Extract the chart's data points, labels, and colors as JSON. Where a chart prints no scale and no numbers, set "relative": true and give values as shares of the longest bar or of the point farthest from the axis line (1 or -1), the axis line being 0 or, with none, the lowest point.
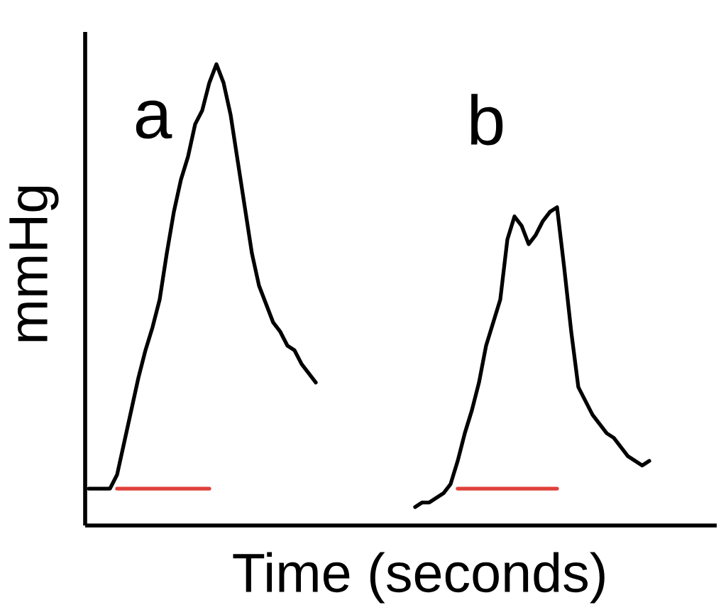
{
  "chart_data": {
    "type": "line",
    "relative": true,
    "xlabel": "Time (seconds)",
    "ylabel": "mmHg",
    "categories": [
      null,
      null,
      null,
      null,
      null,
      null,
      null,
      null,
      null,
      null,
      null,
      null,
      null,
      null,
      null,
      null,
      null,
      null,
      null,
      null,
      null,
      null,
      null,
      null,
      null,
      null,
      null,
      null,
      null,
      null,
      null,
      null,
      null,
      null,
      null,
      null,
      null,
      null,
      null,
      null,
      null,
      null,
      null,
      null,
      null,
      null,
      null,
      null,
      null,
      null,
      null,
      null,
      null,
      null,
      null,
      null,
      null,
      null,
      null,
      null,
      null,
      null,
      null,
      null,
      null,
      null,
      null,
      null,
      null,
      null,
      null,
      null,
      null,
      null,
      null,
      null,
      null,
      null,
      null,
      null,
      null,
      null,
      null,
      null,
      null,
      null,
      null,
      null,
      null
    ],
    "series": [
      {
        "name": "a",
        "color": "#000000",
        "values": [
          0.08,
          0.08,
          0.08,
          0.08,
          0.11,
          0.18,
          0.25,
          0.32,
          0.38,
          0.43,
          0.49,
          0.59,
          0.68,
          0.75,
          0.8,
          0.87,
          0.9,
          0.96,
          1,
          0.96,
          0.89,
          0.79,
          0.69,
          0.59,
          0.52,
          0.48,
          0.44,
          0.42,
          0.39,
          0.38,
          0.35,
          0.33,
          0.31,
          null,
          null,
          null,
          null,
          null,
          null,
          null,
          null,
          null,
          null,
          null,
          null,
          null,
          null,
          null,
          null,
          null,
          null,
          null,
          null,
          null,
          null,
          null,
          null,
          null,
          null,
          null,
          null,
          null,
          null,
          null,
          null,
          null,
          null,
          null,
          null,
          null,
          null,
          null,
          null,
          null,
          null,
          null,
          null,
          null,
          null,
          null,
          null,
          null,
          null,
          null,
          null,
          null,
          null,
          null,
          null
        ]
      },
      {
        "name": "b",
        "color": "#000000",
        "values": [
          null,
          null,
          null,
          null,
          null,
          null,
          null,
          null,
          null,
          null,
          null,
          null,
          null,
          null,
          null,
          null,
          null,
          null,
          null,
          null,
          null,
          null,
          null,
          null,
          null,
          null,
          null,
          null,
          null,
          null,
          null,
          null,
          null,
          null,
          null,
          null,
          null,
          null,
          null,
          null,
          null,
          null,
          null,
          null,
          null,
          null,
          0.04,
          0.05,
          0.05,
          0.06,
          0.07,
          0.09,
          0.14,
          0.2,
          0.25,
          0.31,
          0.39,
          0.44,
          0.49,
          0.62,
          0.67,
          0.65,
          0.61,
          0.63,
          0.66,
          0.68,
          0.69,
          0.56,
          0.42,
          0.3,
          0.27,
          0.24,
          0.22,
          0.2,
          0.19,
          0.17,
          0.15,
          0.14,
          0.13,
          0.14,
          null,
          null,
          null,
          null,
          null,
          null,
          null,
          null,
          null
        ]
      },
      {
        "color": "#e0403a",
        "values": [
          null,
          null,
          null,
          null,
          0.08,
          0.08,
          0.08,
          0.08,
          0.08,
          0.08,
          0.08,
          0.08,
          0.08,
          0.08,
          0.08,
          0.08,
          0.08,
          0.08,
          null,
          null,
          null,
          null,
          null,
          null,
          null,
          null,
          null,
          null,
          null,
          null,
          null,
          null,
          null,
          null,
          null,
          null,
          null,
          null,
          null,
          null,
          null,
          null,
          null,
          null,
          null,
          null,
          null,
          null,
          null,
          null,
          null,
          null,
          null,
          null,
          null,
          null,
          null,
          null,
          null,
          null,
          null,
          null,
          null,
          null,
          null,
          null,
          null,
          null,
          null,
          null,
          null,
          null,
          null,
          null,
          null,
          null,
          null,
          null,
          null,
          null,
          null,
          null,
          null,
          null,
          null,
          null,
          null,
          null,
          null
        ]
      },
      {
        "color": "#e0403a",
        "values": [
          null,
          null,
          null,
          null,
          null,
          null,
          null,
          null,
          null,
          null,
          null,
          null,
          null,
          null,
          null,
          null,
          null,
          null,
          null,
          null,
          null,
          null,
          null,
          null,
          null,
          null,
          null,
          null,
          null,
          null,
          null,
          null,
          null,
          null,
          null,
          null,
          null,
          null,
          null,
          null,
          null,
          null,
          null,
          null,
          null,
          null,
          null,
          null,
          null,
          null,
          null,
          null,
          0.08,
          0.08,
          0.08,
          0.08,
          0.08,
          0.08,
          0.08,
          0.08,
          0.08,
          0.08,
          0.08,
          0.08,
          0.08,
          0.08,
          0.08,
          null,
          null,
          null,
          null,
          null,
          null,
          null,
          null,
          null,
          null,
          null,
          null,
          null,
          null,
          null,
          null,
          null,
          null,
          null,
          null,
          null,
          null
        ]
      }
    ]
  }
}
